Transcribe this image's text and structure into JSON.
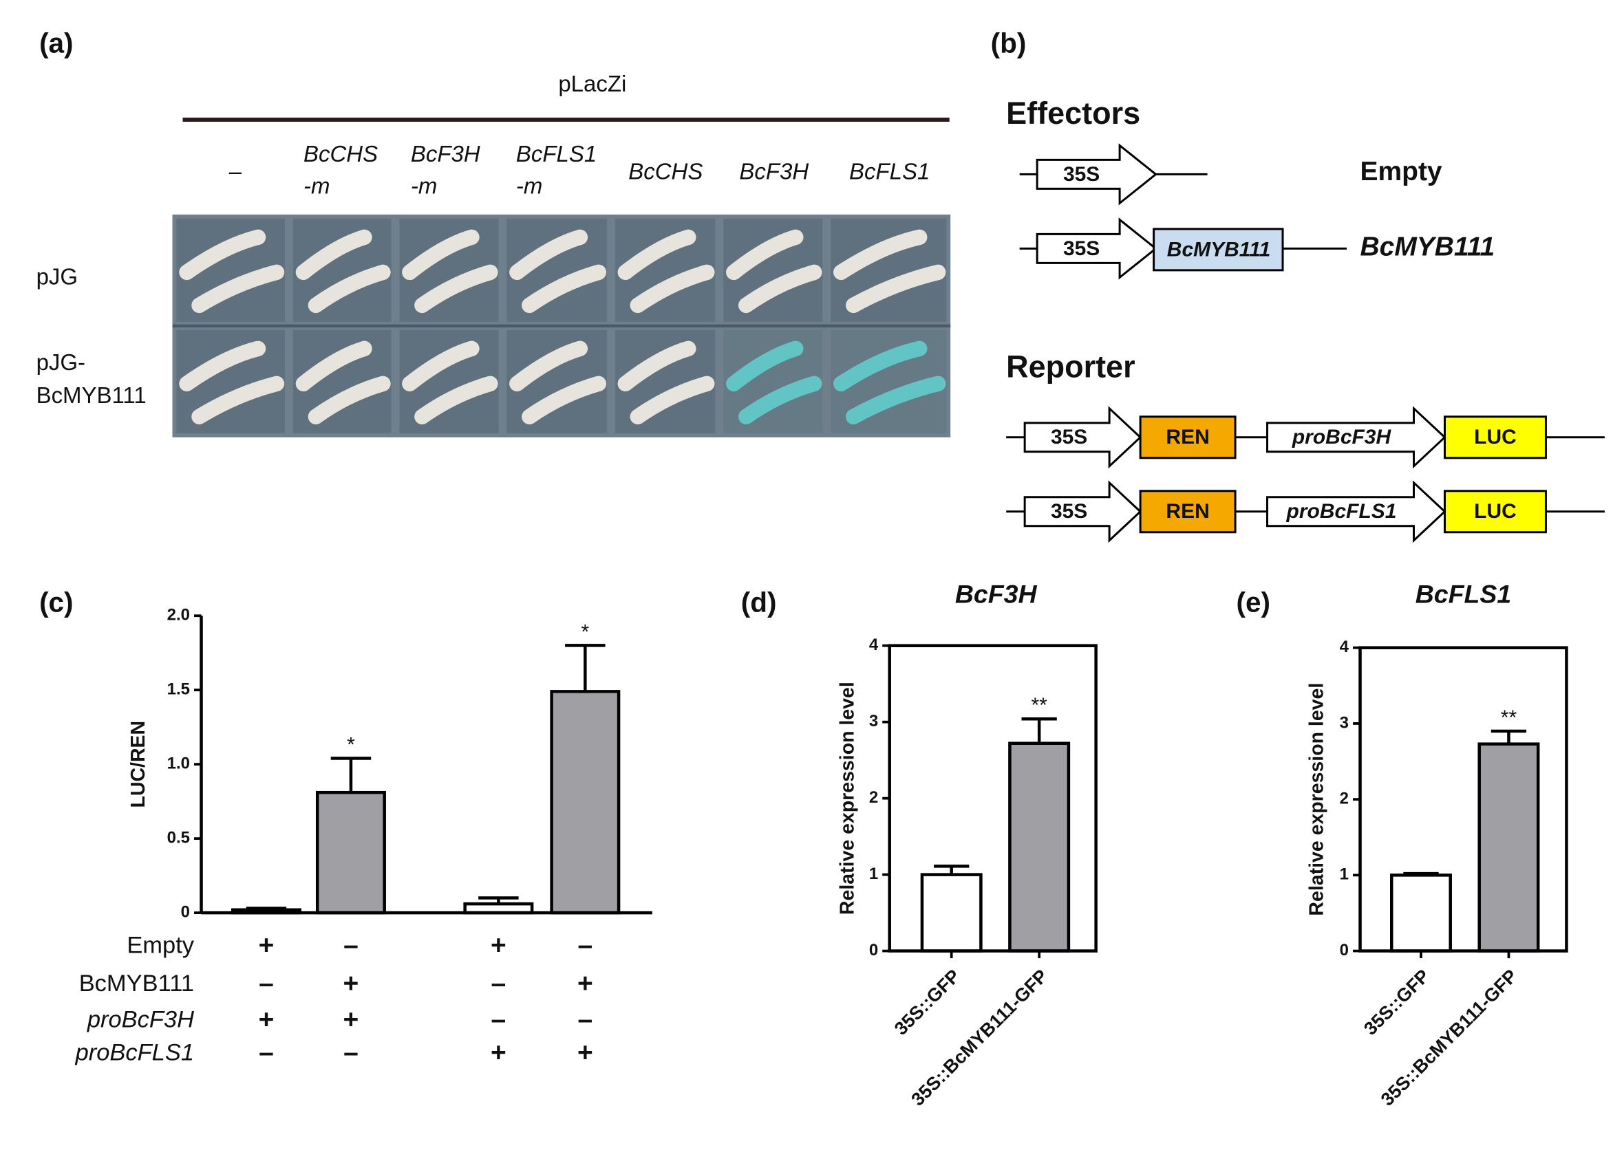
{
  "panel_a": {
    "label": "(a)",
    "vector": "pLacZi",
    "columns": [
      [
        "–"
      ],
      [
        "BcCHS",
        "-m"
      ],
      [
        "BcF3H",
        "-m"
      ],
      [
        "BcFLS1",
        "-m"
      ],
      [
        "BcCHS"
      ],
      [
        "BcF3H"
      ],
      [
        "BcFLS1"
      ]
    ],
    "rows": [
      [
        "pJG"
      ],
      [
        "pJG-",
        "BcMYB111"
      ]
    ]
  },
  "panel_b": {
    "label": "(b)",
    "effectors_title": "Effectors",
    "effectors": [
      {
        "promoter": "35S",
        "name": "Empty"
      },
      {
        "promoter": "35S",
        "gene": "BcMYB111",
        "name": "BcMYB111"
      }
    ],
    "reporter_title": "Reporter",
    "reporters": [
      {
        "promoter": "35S",
        "gene": "REN",
        "test_promoter": "proBcF3H",
        "reporter": "LUC"
      },
      {
        "promoter": "35S",
        "gene": "REN",
        "test_promoter": "proBcFLS1",
        "reporter": "LUC"
      }
    ]
  },
  "chart_data": [
    {
      "type": "bar",
      "label": "(c)",
      "ylabel": "LUC/REN",
      "values": [
        0.02,
        0.81,
        0.06,
        1.49
      ],
      "errors": [
        0.01,
        0.23,
        0.04,
        0.31
      ],
      "colors": [
        "#ffffff",
        "#a0a0a4",
        "#ffffff",
        "#a0a0a4"
      ],
      "annotations": [
        null,
        "*",
        null,
        "*"
      ],
      "ylim": [
        0,
        2
      ],
      "yticks": [
        0,
        0.5,
        {
          "value": 1,
          "label": "1.0"
        },
        1.5,
        {
          "value": 2,
          "label": "2.0"
        }
      ],
      "frame": false,
      "conditions": [
        {
          "name": "Empty",
          "signs": [
            "+",
            "–",
            "+",
            "–"
          ]
        },
        {
          "name": "BcMYB111",
          "signs": [
            "–",
            "+",
            "–",
            "+"
          ]
        },
        {
          "name": "proBcF3H",
          "signs": [
            "+",
            "+",
            "–",
            "–"
          ]
        },
        {
          "name": "proBcFLS1",
          "signs": [
            "–",
            "–",
            "+",
            "+"
          ]
        }
      ]
    },
    {
      "type": "bar",
      "label": "(d)",
      "title": "BcF3H",
      "ylabel": "Relative expression level",
      "categories": [
        "35S::GFP",
        "35S::BcMYB111-GFP"
      ],
      "values": [
        1.0,
        2.72
      ],
      "errors": [
        0.11,
        0.32
      ],
      "colors": [
        "#ffffff",
        "#a0a0a4"
      ],
      "annotations": [
        null,
        "**"
      ],
      "ylim": [
        0,
        4
      ],
      "yticks": [
        0,
        1,
        2,
        3,
        4
      ],
      "frame": true
    },
    {
      "type": "bar",
      "label": "(e)",
      "title": "BcFLS1",
      "ylabel": "Relative expression level",
      "categories": [
        "35S::GFP",
        "35S::BcMYB111-GFP"
      ],
      "values": [
        1.0,
        2.73
      ],
      "errors": [
        0.02,
        0.17
      ],
      "colors": [
        "#ffffff",
        "#a0a0a4"
      ],
      "annotations": [
        null,
        "**"
      ],
      "ylim": [
        0,
        4
      ],
      "yticks": [
        0,
        1,
        2,
        3,
        4
      ],
      "frame": true
    }
  ]
}
